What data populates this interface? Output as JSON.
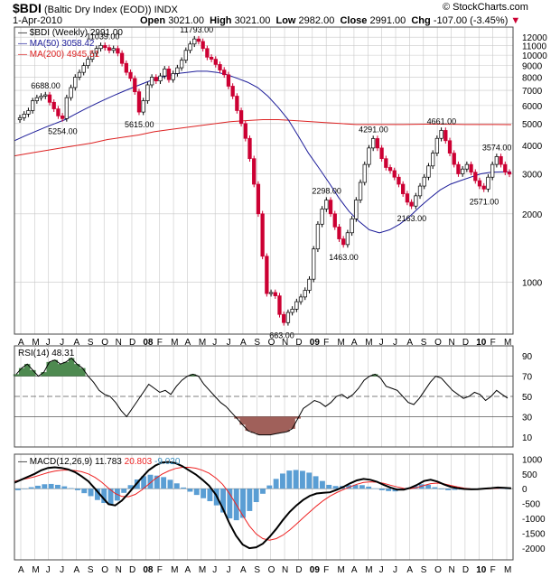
{
  "header": {
    "symbol": "$BDI",
    "name": "(Baltic Dry Index (EOD))",
    "exchange": "INDX",
    "brand": "© StockCharts.com",
    "date": "1-Apr-2010",
    "open_label": "Open",
    "open": "3021.00",
    "high_label": "High",
    "high": "3021.00",
    "low_label": "Low",
    "low": "2982.00",
    "close_label": "Close",
    "close": "2991.00",
    "chg_label": "Chg",
    "chg": "-107.00 (-3.45%)"
  },
  "colors": {
    "up": "#ffffff",
    "down": "#cc0033",
    "ma50": "#1c1c99",
    "ma200": "#dd2222",
    "rsi_over": "#4e8a50",
    "rsi_under": "#a0605a",
    "histogram": "#5a9ed4",
    "signal": "#ee2222",
    "grid": "#c8c8c8"
  },
  "chart_data": [
    {
      "type": "candlestick",
      "title": "$BDI (Weekly) 2991.00",
      "scale": "log",
      "y_ticks": [
        1000,
        2000,
        3000,
        4000,
        5000,
        6000,
        7000,
        8000,
        9000,
        10000,
        11000,
        12000
      ],
      "x_tick_labels": [
        "A",
        "M",
        "J",
        "J",
        "A",
        "S",
        "O",
        "N",
        "D",
        "08",
        "F",
        "M",
        "A",
        "M",
        "J",
        "J",
        "A",
        "S",
        "O",
        "N",
        "D",
        "09",
        "F",
        "M",
        "A",
        "M",
        "J",
        "J",
        "A",
        "S",
        "O",
        "N",
        "D",
        "10",
        "F",
        "M"
      ],
      "series": [
        {
          "name": "$BDI (Weekly)",
          "value": "2991.00"
        },
        {
          "name": "MA(50)",
          "value": "3058.42"
        },
        {
          "name": "MA(200)",
          "value": "4945.51"
        }
      ],
      "annotations": [
        "6688.00",
        "5254.00",
        "11039.00",
        "5615.00",
        "11793.00",
        "663.00",
        "2298.00",
        "1463.00",
        "4291.00",
        "2163.00",
        "4661.00",
        "3574.00",
        "2571.00"
      ],
      "weekly_close": [
        5300,
        5500,
        5700,
        6300,
        6500,
        6600,
        6688,
        6200,
        5800,
        5400,
        5254,
        6500,
        7200,
        8000,
        8400,
        9000,
        9600,
        10200,
        10700,
        11039,
        10800,
        10500,
        10700,
        10200,
        9200,
        8400,
        7900,
        6900,
        5615,
        6300,
        7400,
        8000,
        7700,
        8100,
        8700,
        7800,
        8300,
        8800,
        9500,
        10500,
        11200,
        11793,
        11500,
        10700,
        9800,
        9600,
        9100,
        8600,
        8200,
        7300,
        6600,
        5700,
        5000,
        4300,
        3500,
        2700,
        2000,
        1300,
        890,
        900,
        870,
        720,
        663,
        735,
        760,
        820,
        860,
        920,
        1030,
        1400,
        1800,
        2100,
        2298,
        2000,
        1750,
        1550,
        1463,
        1650,
        1900,
        2300,
        2750,
        3300,
        3900,
        4291,
        3900,
        3500,
        3200,
        3100,
        2900,
        2700,
        2450,
        2250,
        2163,
        2400,
        2650,
        2900,
        3250,
        3700,
        4300,
        4661,
        4200,
        3700,
        3300,
        3000,
        3150,
        3300,
        3050,
        2800,
        2650,
        2571,
        2900,
        3300,
        3574,
        3300,
        3050,
        2991
      ],
      "ma50": [
        4200,
        4400,
        4600,
        4800,
        5000,
        5200,
        5500,
        5800,
        6100,
        6400,
        6700,
        7000,
        7300,
        7600,
        7900,
        8100,
        8300,
        8400,
        8500,
        8500,
        8400,
        8200,
        7900,
        7600,
        7200,
        6600,
        5900,
        5200,
        4400,
        3700,
        3200,
        2750,
        2350,
        2050,
        1850,
        1700,
        1650,
        1700,
        1800,
        1950,
        2150,
        2350,
        2550,
        2700,
        2800,
        2900,
        3000,
        3050,
        3060,
        3058
      ],
      "ma200": [
        3600,
        3700,
        3800,
        3900,
        4000,
        4100,
        4250,
        4350,
        4450,
        4600,
        4700,
        4800,
        4900,
        5000,
        5100,
        5150,
        5200,
        5200,
        5150,
        5100,
        5050,
        5000,
        4950,
        4950,
        4950,
        4950,
        4960,
        4970,
        4960,
        4950,
        4950,
        4950,
        4945
      ]
    },
    {
      "type": "line",
      "title": "RSI(14) 48.31",
      "y_ticks": [
        10,
        30,
        50,
        70,
        90
      ],
      "reference_lines": [
        30,
        50,
        70
      ],
      "values": [
        72,
        78,
        82,
        76,
        70,
        74,
        84,
        86,
        82,
        84,
        88,
        82,
        78,
        70,
        64,
        56,
        52,
        50,
        44,
        36,
        30,
        38,
        46,
        54,
        62,
        58,
        54,
        56,
        52,
        60,
        66,
        70,
        72,
        70,
        62,
        56,
        50,
        44,
        40,
        34,
        28,
        22,
        16,
        14,
        12,
        12,
        12,
        13,
        14,
        15,
        18,
        28,
        38,
        42,
        46,
        44,
        40,
        44,
        50,
        52,
        48,
        52,
        58,
        66,
        70,
        72,
        68,
        60,
        58,
        56,
        50,
        44,
        42,
        48,
        56,
        64,
        70,
        68,
        62,
        56,
        52,
        48,
        50,
        54,
        52,
        46,
        50,
        56,
        52,
        48.31
      ]
    },
    {
      "type": "line",
      "title": "MACD(12,26,9)",
      "y_ticks": [
        1000,
        500,
        0,
        -500,
        -1000,
        -1500,
        -2000
      ],
      "series": [
        {
          "name": "MACD(12,26,9)",
          "value": "11.783"
        },
        {
          "name": "Signal",
          "value": "20.803"
        },
        {
          "name": "Histogram",
          "value": "-9.020"
        }
      ],
      "macd": [
        200,
        300,
        400,
        500,
        620,
        700,
        720,
        700,
        650,
        560,
        420,
        250,
        0,
        -260,
        -520,
        -560,
        -400,
        -150,
        120,
        380,
        620,
        780,
        880,
        900,
        860,
        760,
        620,
        480,
        300,
        100,
        -200,
        -650,
        -1150,
        -1580,
        -1880,
        -2000,
        -1970,
        -1850,
        -1620,
        -1350,
        -1050,
        -780,
        -560,
        -380,
        -240,
        -160,
        -140,
        -120,
        -40,
        60,
        180,
        280,
        330,
        300,
        230,
        130,
        40,
        -30,
        -30,
        30,
        130,
        260,
        300,
        240,
        140,
        60,
        20,
        -10,
        -20,
        -15,
        5,
        20,
        40,
        30,
        12
      ],
      "signal": [
        250,
        300,
        350,
        400,
        470,
        540,
        590,
        620,
        630,
        610,
        570,
        500,
        380,
        220,
        20,
        -160,
        -260,
        -270,
        -190,
        -40,
        150,
        340,
        490,
        600,
        680,
        720,
        720,
        690,
        620,
        520,
        360,
        150,
        -150,
        -520,
        -900,
        -1250,
        -1520,
        -1680,
        -1730,
        -1680,
        -1560,
        -1390,
        -1190,
        -980,
        -780,
        -580,
        -400,
        -250,
        -130,
        -30,
        60,
        150,
        210,
        230,
        220,
        180,
        120,
        60,
        10,
        0,
        40,
        110,
        170,
        190,
        160,
        110,
        60,
        20,
        -5,
        -10,
        -5,
        5,
        15,
        22,
        21
      ],
      "histogram": [
        -50,
        0,
        50,
        100,
        150,
        160,
        130,
        80,
        20,
        -50,
        -150,
        -250,
        -380,
        -480,
        -540,
        -400,
        -140,
        120,
        310,
        420,
        470,
        440,
        390,
        300,
        180,
        40,
        -100,
        -210,
        -320,
        -420,
        -560,
        -800,
        -1000,
        -1060,
        -980,
        -750,
        -450,
        -170,
        110,
        330,
        510,
        610,
        630,
        600,
        540,
        420,
        260,
        130,
        90,
        90,
        120,
        130,
        120,
        70,
        10,
        -50,
        -80,
        -90,
        -40,
        30,
        90,
        150,
        130,
        50,
        -20,
        -50,
        -40,
        -30,
        -15,
        -5,
        10,
        15,
        25,
        8,
        -9
      ]
    }
  ]
}
